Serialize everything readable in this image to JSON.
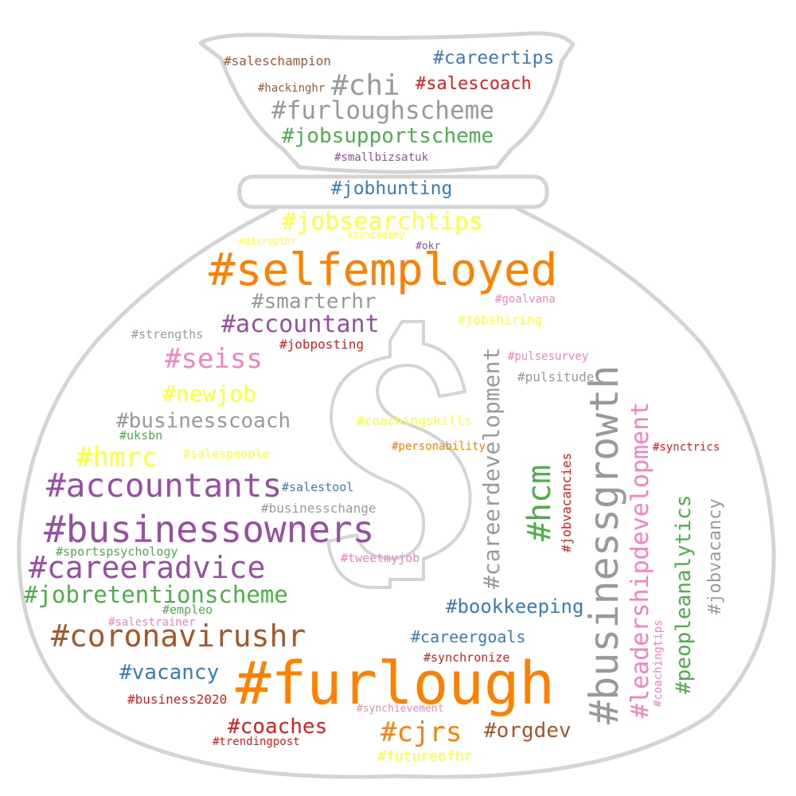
{
  "palette": {
    "orange": "#ff7f00",
    "purple": "#984ea3",
    "gray": "#999999",
    "green": "#4daf4a",
    "blue": "#377eb8",
    "red": "#e41a1c",
    "brown": "#a65628",
    "pink": "#f781bf",
    "yellow": "#ffff33",
    "outline": "#d4d4d4"
  },
  "mask": {
    "shape": "money-bag-icon",
    "symbol": "$"
  },
  "words": [
    {
      "text": "#furlough",
      "color": "orange"
    },
    {
      "text": "#selfemployed",
      "color": "orange"
    },
    {
      "text": "#businessgrowth",
      "color": "gray"
    },
    {
      "text": "#businessowners",
      "color": "purple"
    },
    {
      "text": "#accountants",
      "color": "purple"
    },
    {
      "text": "#careeradvice",
      "color": "purple"
    },
    {
      "text": "#coronavirushr",
      "color": "brown"
    },
    {
      "text": "#leadershipdevelopment",
      "color": "pink"
    },
    {
      "text": "#careerdevelopment",
      "color": "gray"
    },
    {
      "text": "#jobretentionscheme",
      "color": "green"
    },
    {
      "text": "#furloughscheme",
      "color": "gray"
    },
    {
      "text": "#jobsearchtips",
      "color": "yellow"
    },
    {
      "text": "#hcm",
      "color": "green"
    },
    {
      "text": "#accountant",
      "color": "purple"
    },
    {
      "text": "#jobsupportscheme",
      "color": "green"
    },
    {
      "text": "#cjrs",
      "color": "orange"
    },
    {
      "text": "#seiss",
      "color": "pink"
    },
    {
      "text": "#hmrc",
      "color": "yellow"
    },
    {
      "text": "#peopleanalytics",
      "color": "green"
    },
    {
      "text": "#chi",
      "color": "gray"
    },
    {
      "text": "#smarterhr",
      "color": "gray"
    },
    {
      "text": "#businesscoach",
      "color": "gray"
    },
    {
      "text": "#coaches",
      "color": "red"
    },
    {
      "text": "#newjob",
      "color": "yellow"
    },
    {
      "text": "#orgdev",
      "color": "brown"
    },
    {
      "text": "#vacancy",
      "color": "blue"
    },
    {
      "text": "#jobvacancy",
      "color": "gray"
    },
    {
      "text": "#bookkeeping",
      "color": "blue"
    },
    {
      "text": "#careertips",
      "color": "blue"
    },
    {
      "text": "#jobhunting",
      "color": "blue"
    },
    {
      "text": "#salescoach",
      "color": "red"
    },
    {
      "text": "#careergoals",
      "color": "blue"
    },
    {
      "text": "#saleschampion",
      "color": "brown"
    },
    {
      "text": "#futureofhr",
      "color": "yellow"
    },
    {
      "text": "#jobvacancies",
      "color": "red"
    },
    {
      "text": "#jobposting",
      "color": "red"
    },
    {
      "text": "#business2020",
      "color": "red"
    },
    {
      "text": "#jobshiring",
      "color": "yellow"
    },
    {
      "text": "#coachingskills",
      "color": "yellow"
    },
    {
      "text": "#pulsitude",
      "color": "gray"
    },
    {
      "text": "#strengths",
      "color": "gray"
    },
    {
      "text": "#businesschange",
      "color": "gray"
    },
    {
      "text": "#synchronize",
      "color": "red"
    },
    {
      "text": "#salestool",
      "color": "blue"
    },
    {
      "text": "#uksbn",
      "color": "green"
    },
    {
      "text": "#salespeople",
      "color": "yellow"
    },
    {
      "text": "#sportspsychology",
      "color": "green"
    },
    {
      "text": "#tweetmyjob",
      "color": "pink"
    },
    {
      "text": "#empleo",
      "color": "green"
    },
    {
      "text": "#trendingpost",
      "color": "red"
    },
    {
      "text": "#personability",
      "color": "orange"
    },
    {
      "text": "#goalvana",
      "color": "pink"
    },
    {
      "text": "#pulsesurvey",
      "color": "pink"
    },
    {
      "text": "#synctrics",
      "color": "red"
    },
    {
      "text": "#coachingtips",
      "color": "pink"
    },
    {
      "text": "#hackinghr",
      "color": "brown"
    },
    {
      "text": "#smallbizsatuk",
      "color": "purple"
    },
    {
      "text": "#okr",
      "color": "purple"
    },
    {
      "text": "#disrupthr",
      "color": "yellow"
    },
    {
      "text": "#syncademy",
      "color": "yellow"
    },
    {
      "text": "#salestrainer",
      "color": "pink"
    },
    {
      "text": "#synchievement",
      "color": "pink"
    }
  ]
}
